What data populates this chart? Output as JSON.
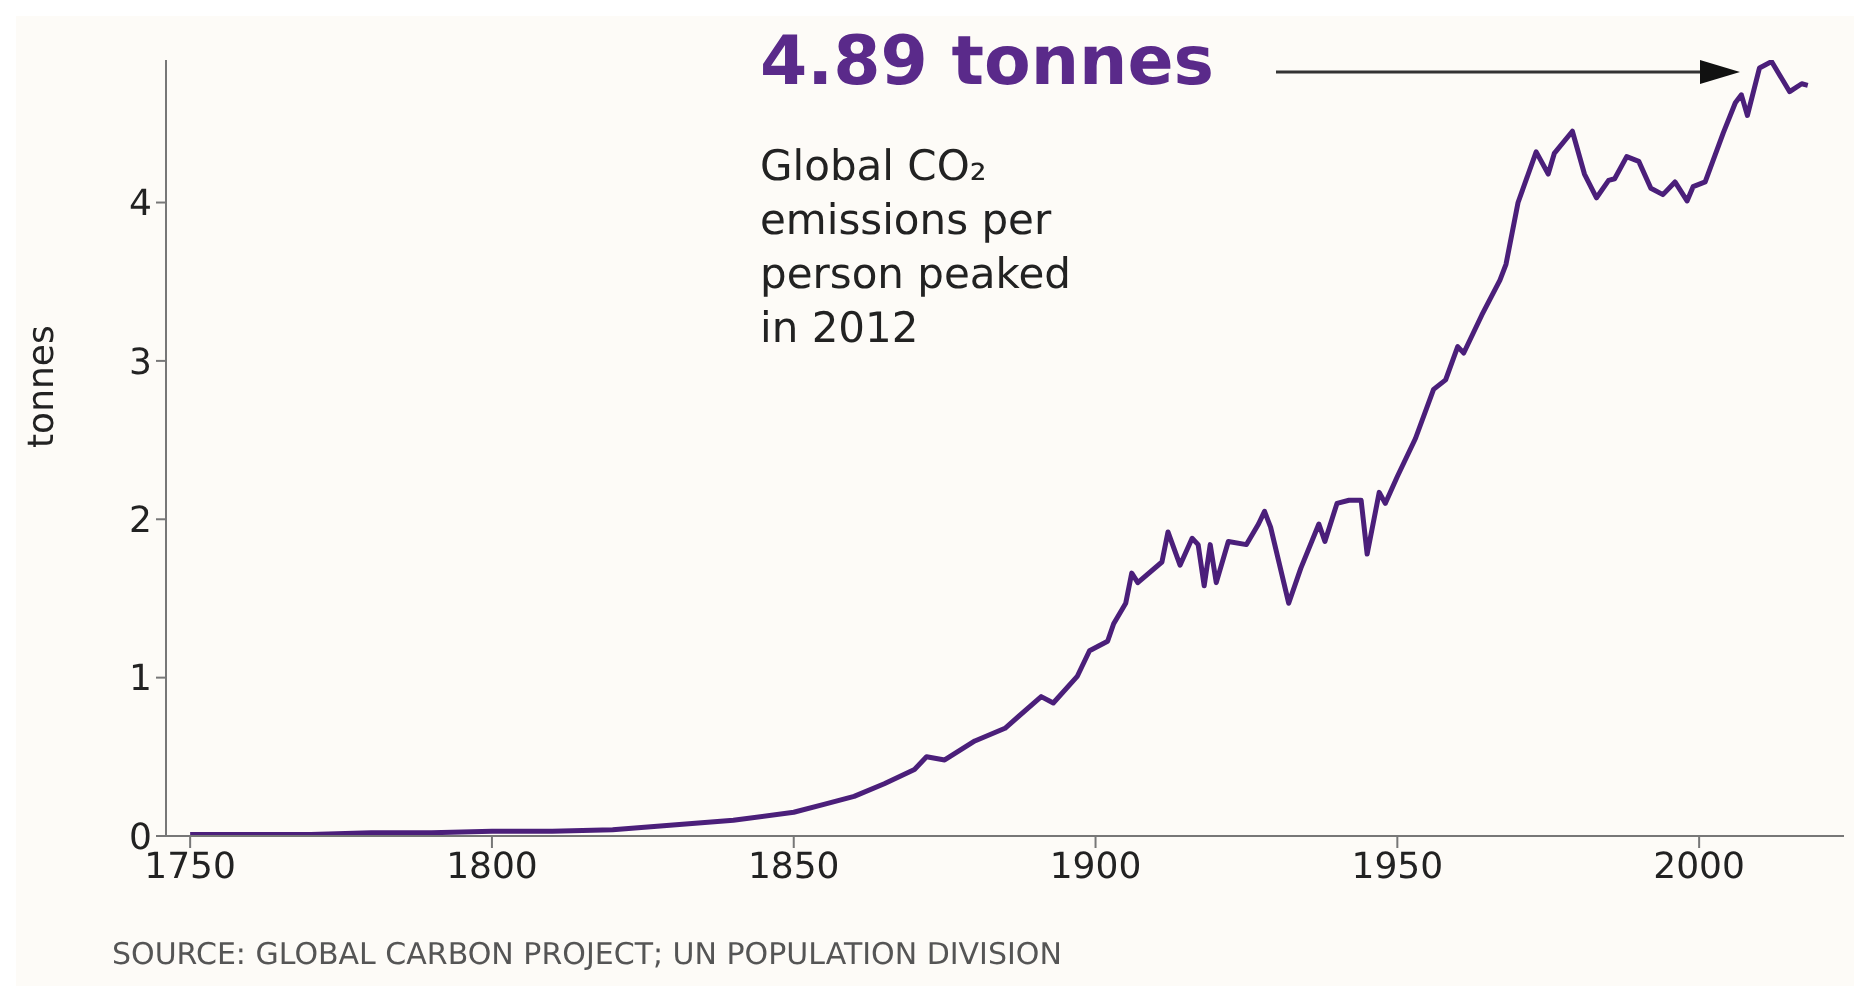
{
  "chart_data": {
    "type": "line",
    "ylabel": "tonnes",
    "color": "#4b1f7a",
    "x": [
      1750,
      1760,
      1770,
      1780,
      1790,
      1800,
      1810,
      1820,
      1830,
      1840,
      1850,
      1855,
      1860,
      1865,
      1870,
      1872,
      1875,
      1880,
      1885,
      1891,
      1893,
      1897,
      1899,
      1902,
      1903,
      1905,
      1906,
      1907,
      1911,
      1912,
      1914,
      1916,
      1917,
      1918,
      1919,
      1920,
      1922,
      1925,
      1927,
      1928,
      1929,
      1932,
      1934,
      1937,
      1938,
      1940,
      1942,
      1944,
      1945,
      1947,
      1948,
      1950,
      1953,
      1956,
      1958,
      1960,
      1961,
      1964,
      1967,
      1968,
      1970,
      1973,
      1975,
      1976,
      1979,
      1981,
      1983,
      1985,
      1986,
      1988,
      1990,
      1992,
      1994,
      1996,
      1998,
      1999,
      2001,
      2004,
      2006,
      2007,
      2008,
      2010,
      2012,
      2015,
      2017,
      2018
    ],
    "values": [
      0.01,
      0.01,
      0.01,
      0.02,
      0.02,
      0.03,
      0.03,
      0.04,
      0.07,
      0.1,
      0.15,
      0.2,
      0.25,
      0.33,
      0.42,
      0.5,
      0.48,
      0.6,
      0.68,
      0.88,
      0.84,
      1.01,
      1.17,
      1.23,
      1.34,
      1.47,
      1.66,
      1.6,
      1.73,
      1.92,
      1.71,
      1.88,
      1.84,
      1.58,
      1.84,
      1.6,
      1.86,
      1.84,
      1.97,
      2.05,
      1.95,
      1.47,
      1.69,
      1.97,
      1.86,
      2.1,
      2.12,
      2.12,
      1.78,
      2.17,
      2.1,
      2.27,
      2.51,
      2.82,
      2.88,
      3.09,
      3.05,
      3.29,
      3.51,
      3.61,
      4.0,
      4.32,
      4.18,
      4.31,
      4.45,
      4.18,
      4.03,
      4.14,
      4.15,
      4.29,
      4.26,
      4.09,
      4.05,
      4.13,
      4.01,
      4.1,
      4.13,
      4.44,
      4.63,
      4.68,
      4.55,
      4.85,
      4.89,
      4.7,
      4.75,
      4.74
    ],
    "xlim": [
      1746,
      2024
    ],
    "ylim": [
      0,
      4.9
    ],
    "xticks": [
      1750,
      1800,
      1850,
      1900,
      1950,
      2000
    ],
    "yticks": [
      0,
      1,
      2,
      3,
      4
    ],
    "annotations": [
      "4.89 tonnes",
      "Global CO₂ emissions per person peaked in 2012",
      "SOURCE: GLOBAL CARBON PROJECT; UN POPULATION DIVISION"
    ]
  }
}
